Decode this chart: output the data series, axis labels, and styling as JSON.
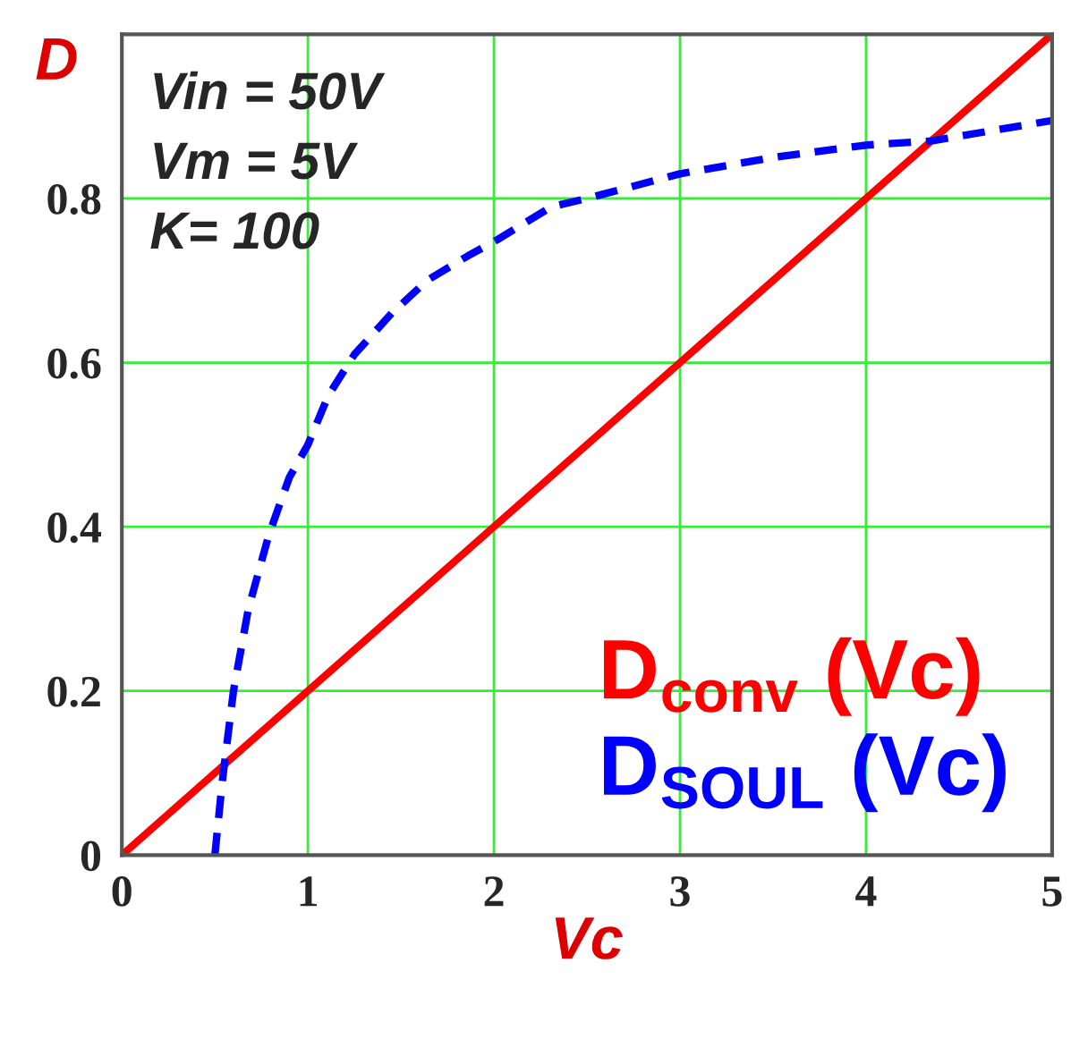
{
  "chart_data": {
    "type": "line",
    "xlabel": "Vc",
    "ylabel": "D",
    "xlim": [
      0,
      5
    ],
    "ylim": [
      0,
      1
    ],
    "xticks": [
      0,
      1,
      2,
      3,
      4,
      5
    ],
    "yticks": [
      0,
      0.2,
      0.4,
      0.6,
      0.8
    ],
    "grid": true,
    "legend": "bottom right",
    "marker": "none",
    "annotations": [
      "Vin = 50V",
      "Vm = 5V",
      "K= 100"
    ],
    "series": [
      {
        "name": "D$_{conv}$ (Vc)",
        "color": "#ff0000",
        "line_style": "solid",
        "x": [
          0,
          5
        ],
        "values": [
          0,
          1
        ]
      },
      {
        "name": "D$_{SOUL}$ (Vc)",
        "color": "#0000ff",
        "line_style": "dashed",
        "x": [
          0.5,
          0.54,
          0.6,
          0.68,
          0.79,
          0.9,
          1.0,
          1.11,
          1.25,
          1.45,
          1.64,
          1.86,
          2.02,
          2.31,
          2.5,
          3.0,
          3.5,
          4.0,
          4.35,
          5.0
        ],
        "values": [
          0,
          0.09,
          0.2,
          0.3,
          0.39,
          0.46,
          0.5,
          0.56,
          0.61,
          0.66,
          0.7,
          0.73,
          0.75,
          0.79,
          0.8,
          0.83,
          0.85,
          0.865,
          0.87,
          0.895
        ]
      }
    ]
  }
}
